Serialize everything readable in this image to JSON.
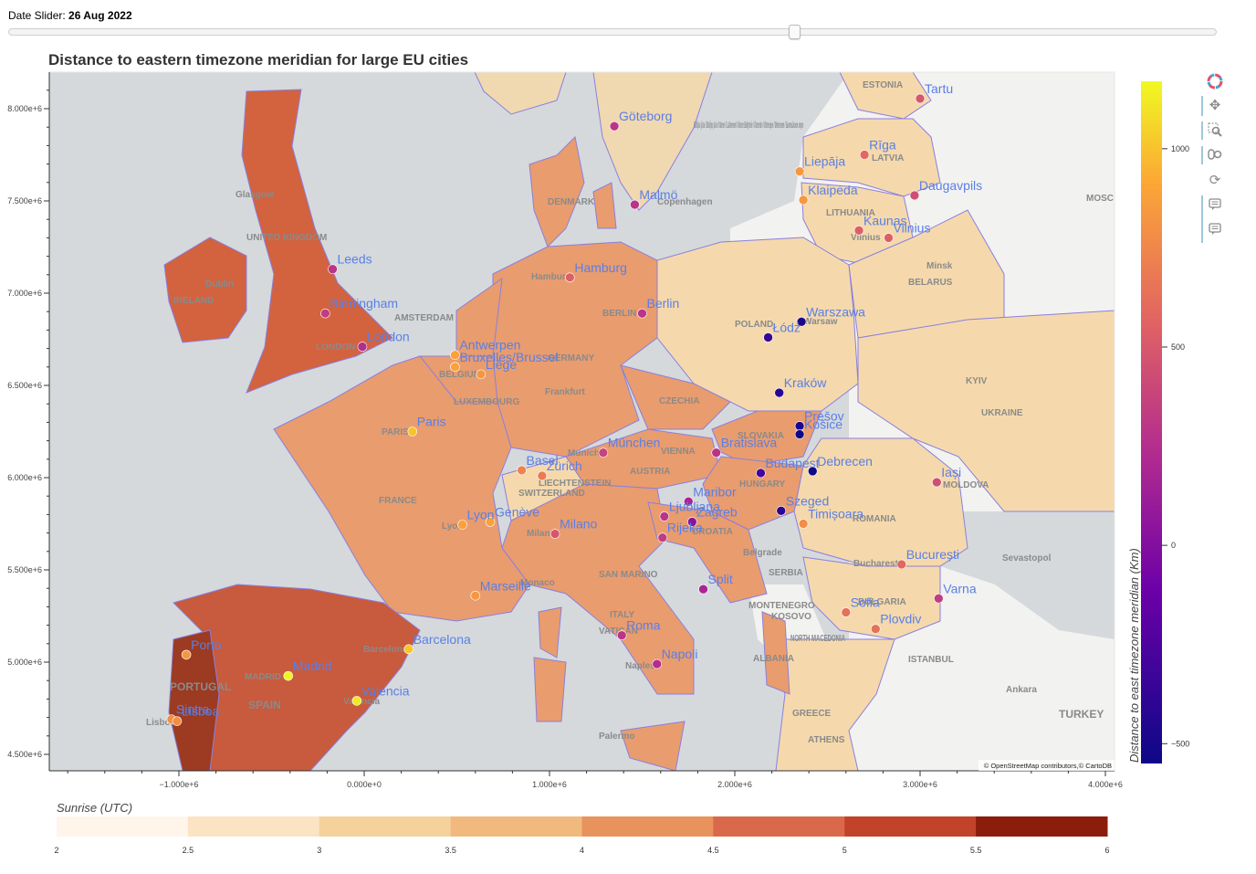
{
  "slider": {
    "label": "Date Slider: ",
    "value": "26 Aug 2022"
  },
  "plot": {
    "title": "Distance to eastern timezone meridian for large EU cities"
  },
  "axes": {
    "x_ticks": [
      "−1.000e+6",
      "0.000e+0",
      "1.000e+6",
      "2.000e+6",
      "3.000e+6",
      "4.000e+6"
    ],
    "y_ticks": [
      "8.000e+6",
      "7.500e+6",
      "7.000e+6",
      "6.500e+6",
      "6.000e+6",
      "5.500e+6",
      "5.000e+6",
      "4.500e+6"
    ]
  },
  "attribution": "© OpenStreetMap contributors,© CartoDB",
  "colorbar_distance": {
    "title": "Distance to east timezone meridian (Km)",
    "ticks": [
      "1000",
      "500",
      "0",
      "−500"
    ],
    "palette": [
      "#0d0887",
      "#6a00a8",
      "#b12a90",
      "#e16462",
      "#fca636",
      "#f0f921"
    ]
  },
  "colorbar_sunrise": {
    "title": "Sunrise (UTC)",
    "ticks": [
      "2",
      "2.5",
      "3",
      "3.5",
      "4",
      "4.5",
      "5",
      "5.5",
      "6"
    ],
    "colors": [
      "#fff5eb",
      "#fbe3c3",
      "#f5d19c",
      "#f0b97e",
      "#e8925c",
      "#d9694a",
      "#c2422a",
      "#8c1d0b"
    ]
  },
  "basemap_labels": [
    "ESTONIA",
    "LATVIA",
    "LITHUANIA",
    "Minsk",
    "BELARUS",
    "UKRAINE",
    "KYIV",
    "POLAND",
    "Warsaw",
    "BERLIN",
    "Hamburg",
    "DENMARK",
    "Copenhagen",
    "Baltijas jūra / Baltijos jūra / Itämeri / Läänemeri / Morze Bałtyckie / Östersön / Østersjen / Østersøen / Балтийское море",
    "UNITED KINGDOM",
    "Glasgow",
    "Dublin",
    "IRELAND",
    "LONDON",
    "AMSTERDAM",
    "BELGIUM",
    "LUXEMBOURG",
    "Frankfurt",
    "GERMANY",
    "CZECHIA",
    "SLOVAKIA",
    "VIENNA",
    "AUSTRIA",
    "Munich",
    "LIECHTENSTEIN",
    "SWITZERLAND",
    "HUNGARY",
    "PARIS",
    "FRANCE",
    "Lyon",
    "Milan",
    "CROATIA",
    "Belgrade",
    "SERBIA",
    "ROMANIA",
    "Bucharest",
    "MOLDOVA",
    "SAN MARINO",
    "ITALY",
    "VATICAN",
    "Naples",
    "MONTENEGRO",
    "KOSOVO",
    "NORTH MACEDONIA",
    "ALBANIA",
    "GREECE",
    "ATHENS",
    "BULGARIA",
    "ISTANBUL",
    "Ankara",
    "TURKEY",
    "Sevastopol",
    "MOSCOW",
    "Barcelona",
    "MADRID",
    "SPAIN",
    "Valencia",
    "PORTUGAL",
    "Lisboa",
    "Vilnius",
    "Palermo",
    "Monaco"
  ],
  "cities": [
    {
      "name": "Tartu",
      "x": 3.0,
      "y": 8.055,
      "d": 400
    },
    {
      "name": "Göteborg",
      "x": 1.35,
      "y": 7.905,
      "d": 200
    },
    {
      "name": "Rīga",
      "x": 2.7,
      "y": 7.75,
      "d": 500
    },
    {
      "name": "Liepāja",
      "x": 2.35,
      "y": 7.66,
      "d": 750
    },
    {
      "name": "Daugavpils",
      "x": 2.97,
      "y": 7.53,
      "d": 350
    },
    {
      "name": "Klaipėda",
      "x": 2.37,
      "y": 7.505,
      "d": 750
    },
    {
      "name": "Malmö",
      "x": 1.46,
      "y": 7.48,
      "d": 200
    },
    {
      "name": "Kaunas",
      "x": 2.67,
      "y": 7.34,
      "d": 450
    },
    {
      "name": "Vilnius",
      "x": 2.83,
      "y": 7.3,
      "d": 450
    },
    {
      "name": "Leeds",
      "x": -0.17,
      "y": 7.13,
      "d": 200
    },
    {
      "name": "Hamburg",
      "x": 1.11,
      "y": 7.085,
      "d": 450
    },
    {
      "name": "Birmingham",
      "x": -0.21,
      "y": 6.89,
      "d": 250
    },
    {
      "name": "Berlin",
      "x": 1.5,
      "y": 6.89,
      "d": 200
    },
    {
      "name": "Warszawa",
      "x": 2.36,
      "y": 6.845,
      "d": -500
    },
    {
      "name": "Łódź",
      "x": 2.18,
      "y": 6.76,
      "d": -400
    },
    {
      "name": "London",
      "x": -0.01,
      "y": 6.71,
      "d": 150
    },
    {
      "name": "Antwerpen",
      "x": 0.49,
      "y": 6.665,
      "d": 800
    },
    {
      "name": "Bruxelles/Brussel",
      "x": 0.49,
      "y": 6.6,
      "d": 800
    },
    {
      "name": "Liège",
      "x": 0.63,
      "y": 6.56,
      "d": 750
    },
    {
      "name": "Kraków",
      "x": 2.24,
      "y": 6.46,
      "d": -450
    },
    {
      "name": "Prešov",
      "x": 2.35,
      "y": 6.28,
      "d": -500
    },
    {
      "name": "Košice",
      "x": 2.35,
      "y": 6.235,
      "d": -550
    },
    {
      "name": "Paris",
      "x": 0.26,
      "y": 6.25,
      "d": 950
    },
    {
      "name": "Bratislava",
      "x": 1.9,
      "y": 6.135,
      "d": 200
    },
    {
      "name": "München",
      "x": 1.29,
      "y": 6.135,
      "d": 300
    },
    {
      "name": "Basel",
      "x": 0.85,
      "y": 6.04,
      "d": 650
    },
    {
      "name": "Zürich",
      "x": 0.96,
      "y": 6.01,
      "d": 600
    },
    {
      "name": "Budapest",
      "x": 2.14,
      "y": 6.025,
      "d": -350
    },
    {
      "name": "Debrecen",
      "x": 2.42,
      "y": 6.035,
      "d": -550
    },
    {
      "name": "Iași",
      "x": 3.09,
      "y": 5.975,
      "d": 350
    },
    {
      "name": "Maribor",
      "x": 1.75,
      "y": 5.87,
      "d": 100
    },
    {
      "name": "Ljubljana",
      "x": 1.62,
      "y": 5.79,
      "d": 200
    },
    {
      "name": "Zagreb",
      "x": 1.77,
      "y": 5.76,
      "d": -50
    },
    {
      "name": "Szeged",
      "x": 2.25,
      "y": 5.82,
      "d": -450
    },
    {
      "name": "Timișoara",
      "x": 2.37,
      "y": 5.75,
      "d": 700
    },
    {
      "name": "Genève",
      "x": 0.68,
      "y": 5.76,
      "d": 800
    },
    {
      "name": "Lyon",
      "x": 0.53,
      "y": 5.745,
      "d": 800
    },
    {
      "name": "Rijeka",
      "x": 1.61,
      "y": 5.675,
      "d": 250
    },
    {
      "name": "Milano",
      "x": 1.03,
      "y": 5.695,
      "d": 400
    },
    {
      "name": "București",
      "x": 2.9,
      "y": 5.53,
      "d": 500
    },
    {
      "name": "Split",
      "x": 1.83,
      "y": 5.395,
      "d": 100
    },
    {
      "name": "Marseille",
      "x": 0.6,
      "y": 5.36,
      "d": 750
    },
    {
      "name": "Varna",
      "x": 3.1,
      "y": 5.345,
      "d": 250
    },
    {
      "name": "Sofia",
      "x": 2.6,
      "y": 5.27,
      "d": 550
    },
    {
      "name": "Plovdiv",
      "x": 2.76,
      "y": 5.18,
      "d": 550
    },
    {
      "name": "Roma",
      "x": 1.39,
      "y": 5.145,
      "d": 200
    },
    {
      "name": "Barcelona",
      "x": 0.24,
      "y": 5.07,
      "d": 950
    },
    {
      "name": "Porto",
      "x": -0.96,
      "y": 5.04,
      "d": 750
    },
    {
      "name": "Napoli",
      "x": 1.58,
      "y": 4.99,
      "d": 150
    },
    {
      "name": "Madrid",
      "x": -0.41,
      "y": 4.925,
      "d": 1150
    },
    {
      "name": "Valencia",
      "x": -0.04,
      "y": 4.79,
      "d": 1100
    },
    {
      "name": "Sintra",
      "x": -1.04,
      "y": 4.69,
      "d": 700
    },
    {
      "name": "Lisboa",
      "x": -1.01,
      "y": 4.68,
      "d": 700
    }
  ]
}
